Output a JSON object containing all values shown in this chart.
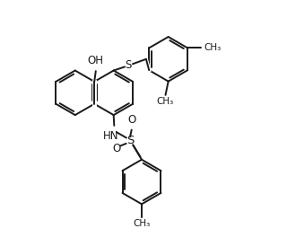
{
  "background_color": "#ffffff",
  "line_color": "#1a1a1a",
  "line_width": 1.4,
  "font_size": 8.5,
  "figsize": [
    3.2,
    2.74
  ],
  "dpi": 100,
  "xlim": [
    0,
    10
  ],
  "ylim": [
    0,
    8.58
  ]
}
